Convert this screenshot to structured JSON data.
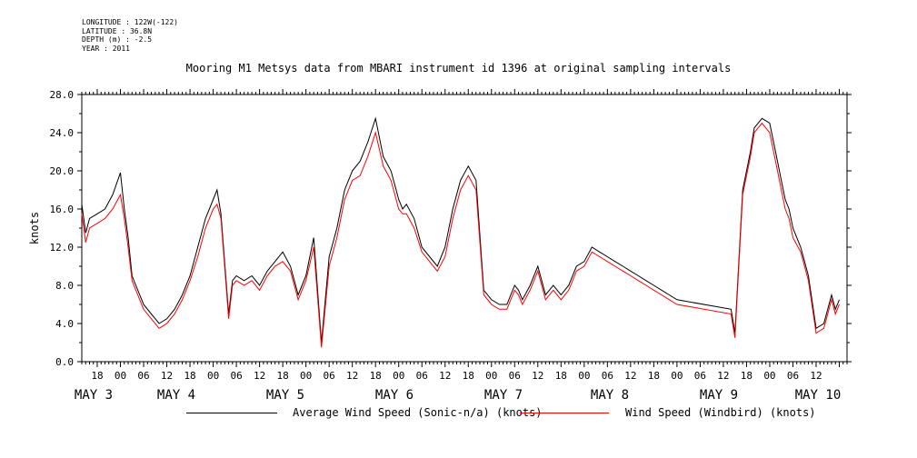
{
  "meta": [
    {
      "label": "LONGITUDE",
      "value": "122W(-122)"
    },
    {
      "label": "LATITUDE",
      "value": "36.8N"
    },
    {
      "label": "DEPTH (m)",
      "value": "-2.5"
    },
    {
      "label": "YEAR",
      "value": "2011"
    }
  ],
  "meta_lines": [
    "LONGITUDE : 122W(-122)",
    "LATITUDE : 36.8N",
    "DEPTH (m) : -2.5",
    "YEAR : 2011"
  ],
  "chart_data": {
    "type": "line",
    "title": "Mooring M1 Metsys data from MBARI instrument id 1396 at original sampling intervals",
    "ylabel": "knots",
    "xlabel": "",
    "ylim": [
      0,
      28
    ],
    "yticks": [
      "0.0",
      "4.0",
      "8.0",
      "12.0",
      "16.0",
      "20.0",
      "24.0",
      "28.0"
    ],
    "x_unit": "hours since 2011-05-03 00:00",
    "xlim": [
      -10,
      188
    ],
    "hour_ticks": [
      "18",
      "00",
      "06",
      "12",
      "18",
      "00",
      "06",
      "12",
      "18",
      "00",
      "06",
      "12",
      "18",
      "00",
      "06",
      "12",
      "18",
      "00",
      "06",
      "12",
      "18",
      "00",
      "06",
      "12",
      "18",
      "00",
      "06",
      "12",
      "18",
      "00",
      "06",
      "12"
    ],
    "date_labels": [
      "MAY  3",
      "MAY  4",
      "MAY  5",
      "MAY  6",
      "MAY  7",
      "MAY  8",
      "MAY  9",
      "MAY 10"
    ],
    "legend_placement": "bottom",
    "series": [
      {
        "name": "Average Wind Speed (Sonic-n/a) (knots)",
        "color": "#000000",
        "x": [
          -10,
          -9,
          -8,
          -6,
          -4,
          -2,
          0,
          1,
          2,
          3,
          4,
          6,
          8,
          10,
          12,
          14,
          16,
          18,
          20,
          22,
          24,
          25,
          26,
          28,
          29,
          30,
          32,
          34,
          36,
          38,
          40,
          42,
          44,
          46,
          48,
          50,
          52,
          54,
          56,
          58,
          60,
          62,
          64,
          66,
          68,
          70,
          71,
          72,
          73,
          74,
          76,
          78,
          80,
          82,
          84,
          86,
          88,
          90,
          92,
          94,
          96,
          98,
          100,
          101,
          102,
          103,
          104,
          106,
          108,
          110,
          112,
          114,
          116,
          118,
          120,
          122,
          124,
          126,
          128,
          130,
          132,
          134,
          136,
          138,
          140,
          142,
          144,
          158,
          159,
          161,
          163,
          164,
          166,
          168,
          170,
          171,
          172,
          173,
          174,
          176,
          178,
          180,
          182,
          184,
          185,
          186
        ],
        "y": [
          16.5,
          13.5,
          15.0,
          15.5,
          16.0,
          17.5,
          19.8,
          16.0,
          13.0,
          9.0,
          8.0,
          6.0,
          5.0,
          4.0,
          4.5,
          5.5,
          7.0,
          9.0,
          12.0,
          15.0,
          17.0,
          18.0,
          15.5,
          5.0,
          8.5,
          9.0,
          8.5,
          9.0,
          8.0,
          9.5,
          10.5,
          11.5,
          10.0,
          7.0,
          9.0,
          13.0,
          2.0,
          11.0,
          14.0,
          18.0,
          20.0,
          21.0,
          23.0,
          25.5,
          21.5,
          20.0,
          18.5,
          17.0,
          16.0,
          16.5,
          15.0,
          12.0,
          11.0,
          10.0,
          12.0,
          16.0,
          19.0,
          20.5,
          19.0,
          7.5,
          6.5,
          6.0,
          6.0,
          7.0,
          8.0,
          7.5,
          6.5,
          8.0,
          10.0,
          7.0,
          8.0,
          7.0,
          8.0,
          10.0,
          10.5,
          12.0,
          11.5,
          11.0,
          10.5,
          10.0,
          9.5,
          9.0,
          8.5,
          8.0,
          7.5,
          7.0,
          6.5,
          5.5,
          3.0,
          18.0,
          22.0,
          24.5,
          25.5,
          25.0,
          21.0,
          19.0,
          17.0,
          16.0,
          14.0,
          12.0,
          9.0,
          3.5,
          4.0,
          7.0,
          5.5,
          6.5
        ]
      },
      {
        "name": "Wind Speed (Windbird) (knots)",
        "color": "#ff0000",
        "x": [
          -10,
          -9,
          -8,
          -6,
          -4,
          -2,
          0,
          1,
          2,
          3,
          4,
          6,
          8,
          10,
          12,
          14,
          16,
          18,
          20,
          22,
          24,
          25,
          26,
          28,
          29,
          30,
          32,
          34,
          36,
          38,
          40,
          42,
          44,
          46,
          48,
          50,
          52,
          54,
          56,
          58,
          60,
          62,
          64,
          66,
          68,
          70,
          71,
          72,
          73,
          74,
          76,
          78,
          80,
          82,
          84,
          86,
          88,
          90,
          92,
          94,
          96,
          98,
          100,
          101,
          102,
          103,
          104,
          106,
          108,
          110,
          112,
          114,
          116,
          118,
          120,
          122,
          124,
          126,
          128,
          130,
          132,
          134,
          136,
          138,
          140,
          142,
          144,
          158,
          159,
          161,
          163,
          164,
          166,
          168,
          170,
          171,
          172,
          173,
          174,
          176,
          178,
          180,
          182,
          184,
          185,
          186
        ],
        "y": [
          15.5,
          12.5,
          14.0,
          14.5,
          15.0,
          16.0,
          17.5,
          15.0,
          12.0,
          8.5,
          7.5,
          5.5,
          4.5,
          3.5,
          4.0,
          5.0,
          6.5,
          8.5,
          11.0,
          14.0,
          16.0,
          16.5,
          15.0,
          4.5,
          8.0,
          8.5,
          8.0,
          8.5,
          7.5,
          9.0,
          10.0,
          10.5,
          9.5,
          6.5,
          8.5,
          12.0,
          1.5,
          10.0,
          13.0,
          17.0,
          19.0,
          19.5,
          21.5,
          24.0,
          20.5,
          19.0,
          17.5,
          16.0,
          15.5,
          15.5,
          14.0,
          11.5,
          10.5,
          9.5,
          11.0,
          15.0,
          18.0,
          19.5,
          18.0,
          7.0,
          6.0,
          5.5,
          5.5,
          6.5,
          7.5,
          7.0,
          6.0,
          7.5,
          9.5,
          6.5,
          7.5,
          6.5,
          7.5,
          9.5,
          10.0,
          11.5,
          11.0,
          10.5,
          10.0,
          9.5,
          9.0,
          8.5,
          8.0,
          7.5,
          7.0,
          6.5,
          6.0,
          5.0,
          2.5,
          17.5,
          21.5,
          24.0,
          25.0,
          24.0,
          20.0,
          18.0,
          16.0,
          15.0,
          13.0,
          11.5,
          8.5,
          3.0,
          3.5,
          6.5,
          5.0,
          6.0
        ]
      }
    ]
  }
}
